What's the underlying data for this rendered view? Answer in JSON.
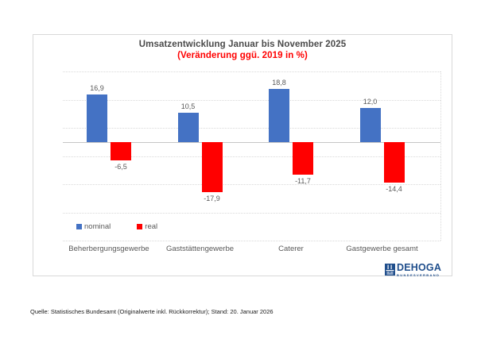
{
  "chart_data": {
    "type": "bar",
    "title": "Umsatzentwicklung Januar bis November 2025",
    "subtitle": "(Veränderung ggü. 2019 in %)",
    "title_color": "#4a4a4a",
    "subtitle_color": "#ff0000",
    "categories": [
      "Beherbergungsgewerbe",
      "Gaststättengewerbe",
      "Caterer",
      "Gastgewerbe gesamt"
    ],
    "series": [
      {
        "name": "nominal",
        "color": "#4472c4",
        "values": [
          16.9,
          10.5,
          18.8,
          12.0
        ],
        "labels": [
          "16,9",
          "10,5",
          "18,8",
          "12,0"
        ]
      },
      {
        "name": "real",
        "color": "#ff0000",
        "values": [
          -6.5,
          -17.9,
          -11.7,
          -14.4
        ],
        "labels": [
          "-6,5",
          "-17,9",
          "-11,7",
          "-14,4"
        ]
      }
    ],
    "ylim": [
      -35,
      25
    ],
    "gridline_step": 10,
    "grid": true,
    "y_axis_labels_visible": false,
    "legend_position": "bottom-left",
    "value_label_format": "german-comma"
  },
  "logo": {
    "text": "DEHOGA",
    "subtext": "BUNDESVERBAND",
    "color": "#1f4e8c"
  },
  "footer": {
    "source": "Quelle: Statistisches Bundesamt (Originalwerte inkl. Rückkorrektur); Stand: 20. Januar 2026"
  }
}
